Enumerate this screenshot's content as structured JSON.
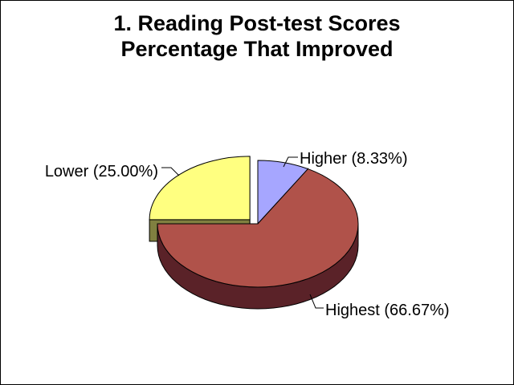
{
  "chart_data": {
    "type": "pie",
    "title": [
      "1. Reading Post-test Scores",
      "Percentage That Improved"
    ],
    "three_d": true,
    "legend": "none",
    "slices": [
      {
        "label": "Higher (8.33%)",
        "value": 8.33,
        "color": "#A6A6FF",
        "side_color": "#6060A0",
        "exploded": false
      },
      {
        "label": "Highest (66.67%)",
        "value": 66.67,
        "color": "#B0524A",
        "side_color": "#5A2228",
        "exploded": false
      },
      {
        "label": "Lower (25.00%)",
        "value": 25.0,
        "color": "#FFFF80",
        "side_color": "#808040",
        "exploded": true
      }
    ]
  }
}
